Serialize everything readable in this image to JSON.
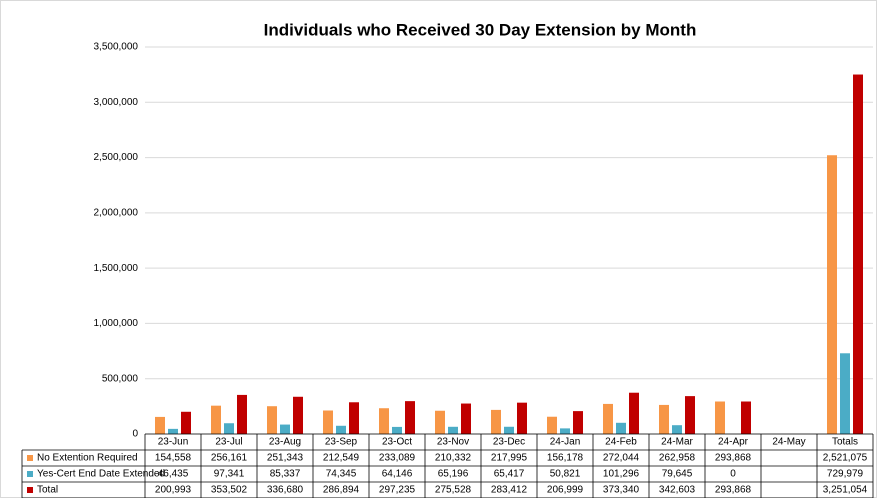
{
  "chart_data": {
    "type": "bar",
    "title": "Individuals who Received 30 Day Extension by Month",
    "categories": [
      "23-Jun",
      "23-Jul",
      "23-Aug",
      "23-Sep",
      "23-Oct",
      "23-Nov",
      "23-Dec",
      "24-Jan",
      "24-Feb",
      "24-Mar",
      "24-Apr",
      "24-May",
      "Totals"
    ],
    "series": [
      {
        "name": "No Extention Required",
        "color": "#f79646",
        "values": [
          154558,
          256161,
          251343,
          212549,
          233089,
          210332,
          217995,
          156178,
          272044,
          262958,
          293868,
          null,
          2521075
        ],
        "value_labels": [
          "154,558",
          "256,161",
          "251,343",
          "212,549",
          "233,089",
          "210,332",
          "217,995",
          "156,178",
          "272,044",
          "262,958",
          "293,868",
          null,
          "2,521,075"
        ]
      },
      {
        "name": "Yes-Cert End Date Extended",
        "color": "#4bacc6",
        "values": [
          46435,
          97341,
          85337,
          74345,
          64146,
          65196,
          65417,
          50821,
          101296,
          79645,
          0,
          null,
          729979
        ],
        "value_labels": [
          "46,435",
          "97,341",
          "85,337",
          "74,345",
          "64,146",
          "65,196",
          "65,417",
          "50,821",
          "101,296",
          "79,645",
          "0",
          null,
          "729,979"
        ]
      },
      {
        "name": "Total",
        "color": "#c00000",
        "values": [
          200993,
          353502,
          336680,
          286894,
          297235,
          275528,
          283412,
          206999,
          373340,
          342603,
          293868,
          null,
          3251054
        ],
        "value_labels": [
          "200,993",
          "353,502",
          "336,680",
          "286,894",
          "297,235",
          "275,528",
          "283,412",
          "206,999",
          "373,340",
          "342,603",
          "293,868",
          null,
          "3,251,054"
        ]
      }
    ],
    "ylim": [
      0,
      3500000
    ],
    "yticks": [
      0,
      {
        "value": 500000,
        "label": "500,000"
      },
      {
        "value": 1000000,
        "label": "1,000,000"
      },
      {
        "value": 1500000,
        "label": "1,500,000"
      },
      {
        "value": 2000000,
        "label": "2,000,000"
      },
      {
        "value": 2500000,
        "label": "2,500,000"
      },
      {
        "value": 3000000,
        "label": "3,000,000"
      },
      {
        "value": 3500000,
        "label": "3,500,000"
      }
    ],
    "grid": true
  }
}
